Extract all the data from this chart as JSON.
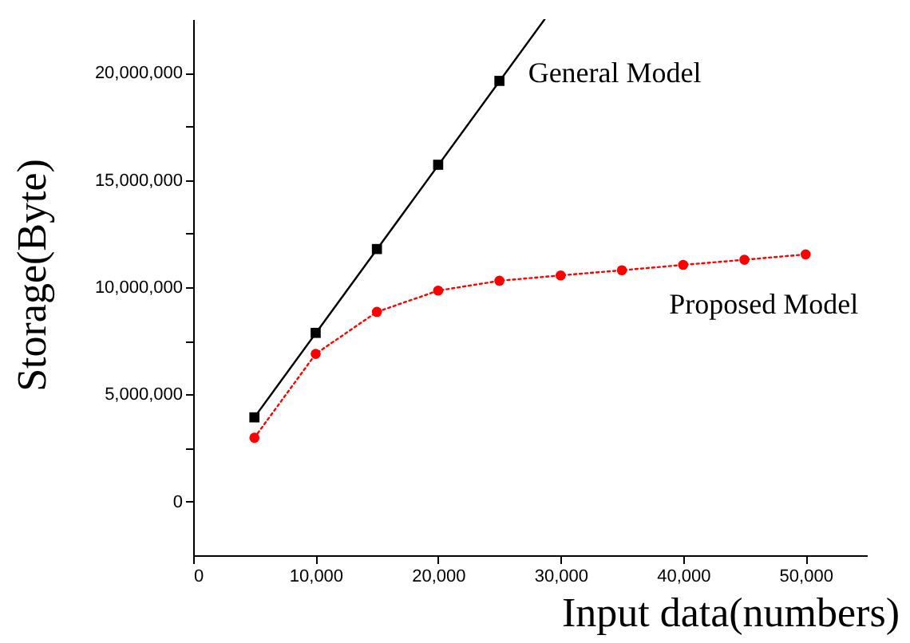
{
  "chart_data": {
    "type": "line",
    "xlabel": "Input data(numbers)",
    "ylabel": "Storage(Byte)",
    "xlim": [
      0,
      55000
    ],
    "xticks": [
      0,
      {
        "value": 10000,
        "label": "10,000"
      },
      {
        "value": 20000,
        "label": "20,000"
      },
      {
        "value": 30000,
        "label": "30,000"
      },
      {
        "value": 40000,
        "label": "40,000"
      },
      {
        "value": 50000,
        "label": "50,000"
      }
    ],
    "ylim": [
      -2500000,
      22500000
    ],
    "yticks": [
      0,
      {
        "value": 2500000,
        "label": null
      },
      {
        "value": 5000000,
        "label": "5,000,000"
      },
      {
        "value": 7500000,
        "label": null
      },
      {
        "value": 10000000,
        "label": "10,000,000"
      },
      {
        "value": 12500000,
        "label": null
      },
      {
        "value": 15000000,
        "label": "15,000,000"
      },
      {
        "value": 17500000,
        "label": null
      },
      {
        "value": 20000000,
        "label": "20,000,000"
      }
    ],
    "series": [
      {
        "name": "General Model",
        "type": "scatter",
        "marker": "square",
        "color": "#000000",
        "x": [
          5000,
          10000,
          15000,
          20000,
          25000
        ],
        "values": [
          3930000,
          7870000,
          11780000,
          15710000,
          19620000
        ]
      },
      {
        "type": "line",
        "marker": "none",
        "line_style": "solid",
        "color": "#000000",
        "x": [
          5000,
          28700
        ],
        "values": [
          3930000,
          22500000
        ]
      },
      {
        "name": "Proposed Model",
        "type": "line",
        "marker": "circle",
        "line_style": "dotted",
        "color": "#ff0000",
        "x": [
          5000,
          10000,
          15000,
          20000,
          25000,
          30000,
          35000,
          40000,
          45000,
          50000
        ],
        "values": [
          2980000,
          6890000,
          8850000,
          9840000,
          10300000,
          10550000,
          10790000,
          11040000,
          11280000,
          11530000
        ]
      }
    ]
  }
}
